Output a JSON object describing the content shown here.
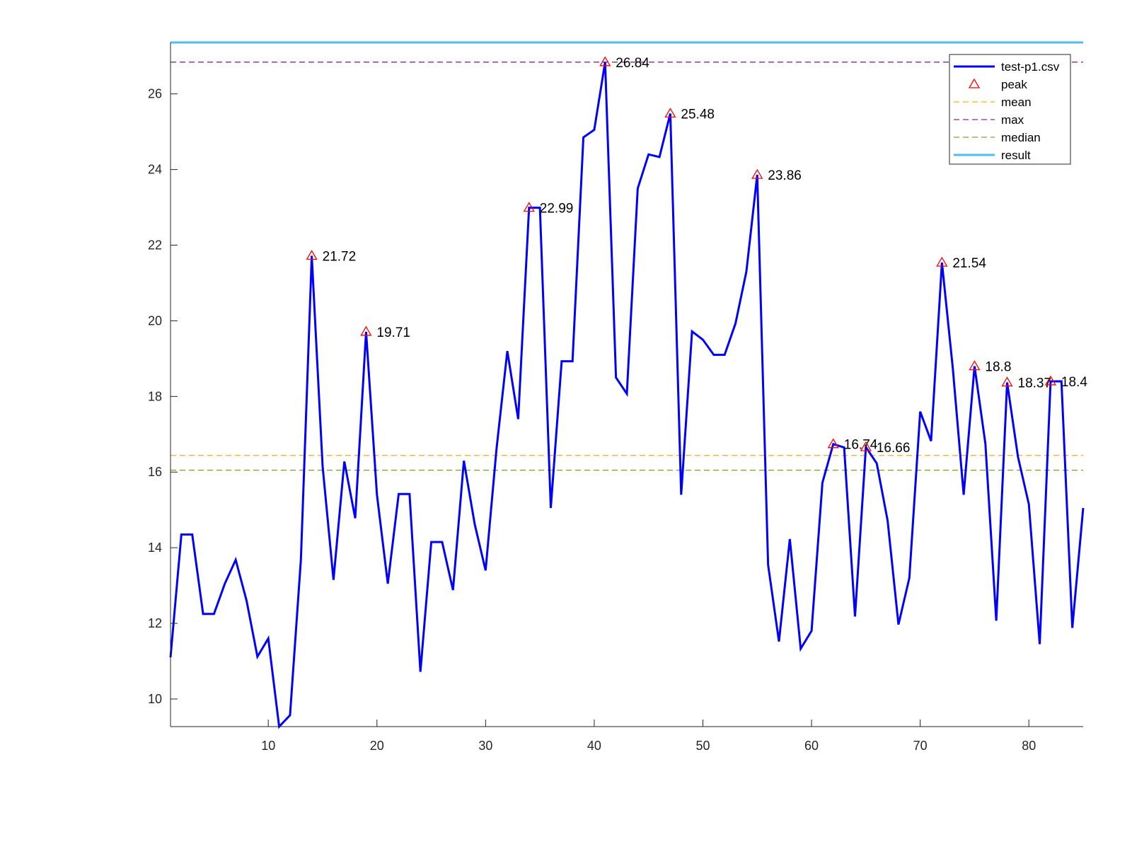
{
  "chart_data": {
    "type": "line",
    "xlim": [
      1,
      85
    ],
    "ylim": [
      9.27,
      27.36
    ],
    "x_ticks": [
      10,
      20,
      30,
      40,
      50,
      60,
      70,
      80
    ],
    "y_ticks": [
      10,
      12,
      14,
      16,
      18,
      20,
      22,
      24,
      26
    ],
    "grid": false,
    "legend_placement": "top-right",
    "series": [
      {
        "name": "test-p1.csv",
        "color": "#0000ff",
        "x_start": 1,
        "values": [
          11.1,
          14.35,
          14.35,
          12.25,
          12.25,
          13.05,
          13.68,
          12.6,
          11.12,
          11.6,
          9.27,
          9.57,
          13.68,
          21.72,
          16.15,
          13.15,
          16.28,
          14.78,
          19.71,
          15.4,
          13.05,
          15.42,
          15.42,
          10.72,
          14.15,
          14.15,
          12.88,
          16.3,
          14.62,
          13.4,
          16.6,
          19.2,
          17.4,
          22.99,
          22.99,
          15.05,
          18.93,
          18.93,
          24.85,
          25.05,
          26.84,
          18.5,
          18.07,
          23.5,
          24.4,
          24.33,
          25.48,
          15.4,
          19.72,
          19.5,
          19.1,
          19.1,
          19.93,
          21.3,
          23.86,
          13.55,
          11.52,
          14.23,
          11.33,
          11.8,
          15.72,
          16.74,
          16.65,
          12.18,
          16.66,
          16.23,
          14.72,
          11.97,
          13.2,
          17.6,
          16.82,
          21.54,
          18.75,
          15.4,
          18.8,
          16.75,
          12.07,
          18.37,
          16.4,
          15.15,
          11.45,
          18.4,
          18.4,
          11.88,
          15.05
        ]
      },
      {
        "name": "peak",
        "color": "#ff0000",
        "marker": "triangle",
        "points": [
          {
            "x": 14,
            "y": 21.72,
            "label": "21.72"
          },
          {
            "x": 19,
            "y": 19.71,
            "label": "19.71"
          },
          {
            "x": 34,
            "y": 22.99,
            "label": "22.99"
          },
          {
            "x": 41,
            "y": 26.84,
            "label": "26.84"
          },
          {
            "x": 47,
            "y": 25.48,
            "label": "25.48"
          },
          {
            "x": 55,
            "y": 23.86,
            "label": "23.86"
          },
          {
            "x": 62,
            "y": 16.74,
            "label": "16.74"
          },
          {
            "x": 65,
            "y": 16.66,
            "label": "16.66"
          },
          {
            "x": 72,
            "y": 21.54,
            "label": "21.54"
          },
          {
            "x": 75,
            "y": 18.8,
            "label": "18.8"
          },
          {
            "x": 78,
            "y": 18.37,
            "label": "18.37"
          },
          {
            "x": 82,
            "y": 18.4,
            "label": "18.4"
          }
        ]
      },
      {
        "name": "mean",
        "color": "#edb120",
        "style": "dashed",
        "y": 16.44
      },
      {
        "name": "max",
        "color": "#7e2f8e",
        "style": "dashed",
        "y": 26.84
      },
      {
        "name": "median",
        "color": "#77ac30",
        "style": "dashed",
        "y": 16.05
      },
      {
        "name": "result",
        "color": "#4dbeee",
        "style": "solid",
        "y": 27.36
      }
    ]
  }
}
